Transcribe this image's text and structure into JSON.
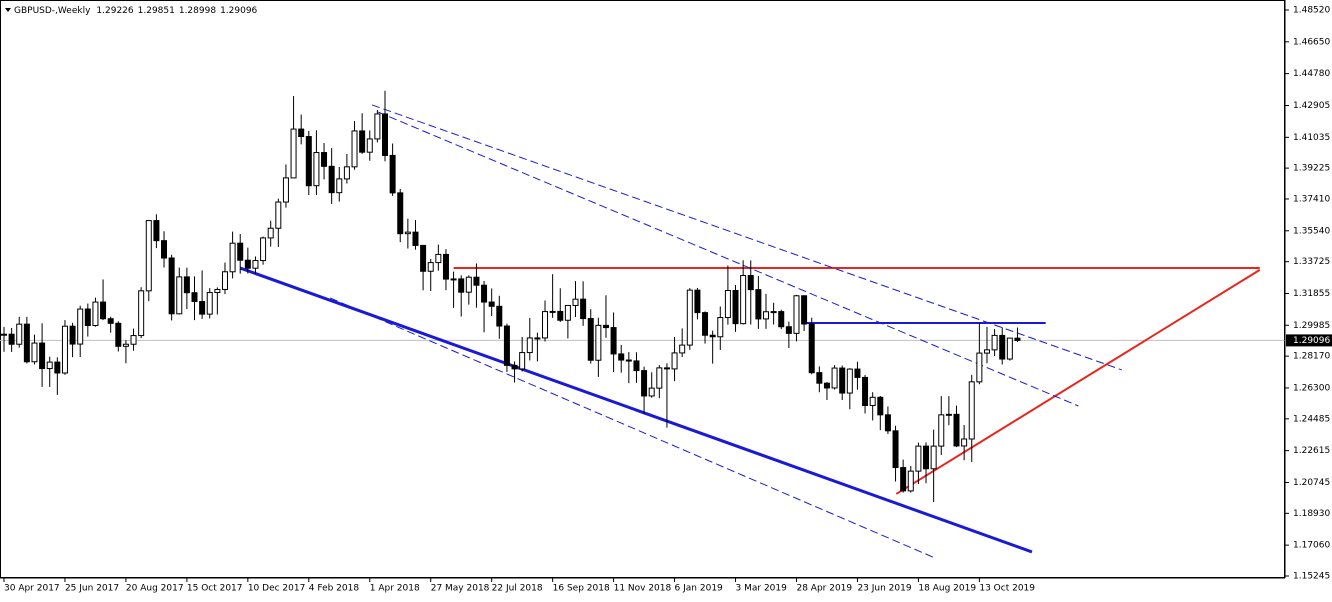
{
  "chart_data": {
    "type": "candlestick",
    "title": "GBPUSD-,Weekly",
    "ylim": [
      1.15245,
      1.4852
    ],
    "yticks": [
      {
        "value": 1.4852,
        "label": "1.48520"
      },
      {
        "value": 1.4665,
        "label": "1.46650"
      },
      {
        "value": 1.4478,
        "label": "1.44780"
      },
      {
        "value": 1.42905,
        "label": "1.42905"
      },
      {
        "value": 1.41035,
        "label": "1.41035"
      },
      {
        "value": 1.39225,
        "label": "1.39225"
      },
      {
        "value": 1.3741,
        "label": "1.37410"
      },
      {
        "value": 1.3554,
        "label": "1.35540"
      },
      {
        "value": 1.33725,
        "label": "1.33725"
      },
      {
        "value": 1.31855,
        "label": "1.31855"
      },
      {
        "value": 1.29985,
        "label": "1.29985"
      },
      {
        "value": 1.2817,
        "label": "1.28170"
      },
      {
        "value": 1.263,
        "label": "1.26300"
      },
      {
        "value": 1.24485,
        "label": "1.24485"
      },
      {
        "value": 1.22615,
        "label": "1.22615"
      },
      {
        "value": 1.20745,
        "label": "1.20745"
      },
      {
        "value": 1.1893,
        "label": "1.18930"
      },
      {
        "value": 1.1706,
        "label": "1.17060"
      },
      {
        "value": 1.15245,
        "label": "1.15245"
      }
    ],
    "categories": [
      "30 Apr 2017",
      null,
      null,
      null,
      null,
      null,
      null,
      null,
      "25 Jun 2017",
      null,
      null,
      null,
      null,
      null,
      null,
      null,
      "20 Aug 2017",
      null,
      null,
      null,
      null,
      null,
      null,
      null,
      "15 Oct 2017",
      null,
      null,
      null,
      null,
      null,
      null,
      null,
      "10 Dec 2017",
      null,
      null,
      null,
      null,
      null,
      null,
      null,
      "4 Feb 2018",
      null,
      null,
      null,
      null,
      null,
      null,
      null,
      "1 Apr 2018",
      null,
      null,
      null,
      null,
      null,
      null,
      null,
      "27 May 2018",
      null,
      null,
      null,
      null,
      null,
      null,
      null,
      "22 Jul 2018",
      null,
      null,
      null,
      null,
      null,
      null,
      null,
      "16 Sep 2018",
      null,
      null,
      null,
      null,
      null,
      null,
      null,
      "11 Nov 2018",
      null,
      null,
      null,
      null,
      null,
      null,
      null,
      "6 Jan 2019",
      null,
      null,
      null,
      null,
      null,
      null,
      null,
      "3 Mar 2019",
      null,
      null,
      null,
      null,
      null,
      null,
      null,
      "28 Apr 2019",
      null,
      null,
      null,
      null,
      null,
      null,
      null,
      "23 Jun 2019",
      null,
      null,
      null,
      null,
      null,
      null,
      null,
      "18 Aug 2019",
      null,
      null,
      null,
      null,
      null,
      null,
      null,
      "13 Oct 2019",
      null,
      null,
      null,
      null,
      null
    ],
    "ohlc": [
      [
        1.294,
        1.2989,
        1.2843,
        1.2946
      ],
      [
        1.2946,
        1.2983,
        1.2842,
        1.2887
      ],
      [
        1.2887,
        1.3048,
        1.2867,
        1.3005
      ],
      [
        1.3005,
        1.3048,
        1.2774,
        1.2784
      ],
      [
        1.2784,
        1.2943,
        1.2768,
        1.2894
      ],
      [
        1.2894,
        1.301,
        1.2636,
        1.2744
      ],
      [
        1.2744,
        1.2814,
        1.2636,
        1.2782
      ],
      [
        1.2782,
        1.281,
        1.2589,
        1.2718
      ],
      [
        1.2718,
        1.3029,
        1.2707,
        1.2993
      ],
      [
        1.2993,
        1.3013,
        1.2811,
        1.2888
      ],
      [
        1.2888,
        1.3114,
        1.2812,
        1.3094
      ],
      [
        1.3094,
        1.3126,
        1.2932,
        1.2997
      ],
      [
        1.2997,
        1.3161,
        1.299,
        1.3135
      ],
      [
        1.3135,
        1.3268,
        1.3029,
        1.3037
      ],
      [
        1.3037,
        1.3049,
        1.2955,
        1.301
      ],
      [
        1.301,
        1.3022,
        1.2844,
        1.2875
      ],
      [
        1.2875,
        1.2911,
        1.2775,
        1.2887
      ],
      [
        1.2887,
        1.2979,
        1.2849,
        1.2938
      ],
      [
        1.2938,
        1.3222,
        1.2923,
        1.3201
      ],
      [
        1.3201,
        1.3616,
        1.314,
        1.3614
      ],
      [
        1.3614,
        1.3651,
        1.3452,
        1.3496
      ],
      [
        1.3496,
        1.3551,
        1.3338,
        1.3394
      ],
      [
        1.3394,
        1.3413,
        1.3027,
        1.3066
      ],
      [
        1.3066,
        1.3338,
        1.3062,
        1.3283
      ],
      [
        1.3283,
        1.3337,
        1.3094,
        1.319
      ],
      [
        1.319,
        1.3286,
        1.3029,
        1.3138
      ],
      [
        1.3138,
        1.3321,
        1.3036,
        1.3064
      ],
      [
        1.3064,
        1.3217,
        1.3039,
        1.3191
      ],
      [
        1.3191,
        1.3221,
        1.3062,
        1.3209
      ],
      [
        1.3209,
        1.3367,
        1.3182,
        1.3313
      ],
      [
        1.3313,
        1.3549,
        1.3274,
        1.3481
      ],
      [
        1.3481,
        1.3535,
        1.3302,
        1.3381
      ],
      [
        1.3381,
        1.3455,
        1.3303,
        1.3334
      ],
      [
        1.3334,
        1.3403,
        1.3301,
        1.3379
      ],
      [
        1.3379,
        1.352,
        1.3355,
        1.3512
      ],
      [
        1.3512,
        1.3613,
        1.3461,
        1.3569
      ],
      [
        1.3569,
        1.3743,
        1.3459,
        1.3723
      ],
      [
        1.3723,
        1.3944,
        1.369,
        1.3865
      ],
      [
        1.3865,
        1.4346,
        1.3863,
        1.4152
      ],
      [
        1.4152,
        1.4237,
        1.4062,
        1.4108
      ],
      [
        1.4108,
        1.4141,
        1.3764,
        1.3819
      ],
      [
        1.3819,
        1.4145,
        1.3764,
        1.4014
      ],
      [
        1.4014,
        1.407,
        1.3856,
        1.3933
      ],
      [
        1.3933,
        1.404,
        1.3712,
        1.3778
      ],
      [
        1.3778,
        1.3929,
        1.3726,
        1.3859
      ],
      [
        1.3859,
        1.4006,
        1.3832,
        1.393
      ],
      [
        1.393,
        1.4199,
        1.3913,
        1.4141
      ],
      [
        1.4141,
        1.4245,
        1.4006,
        1.4016
      ],
      [
        1.4016,
        1.4144,
        1.3966,
        1.4094
      ],
      [
        1.4094,
        1.4264,
        1.4074,
        1.4241
      ],
      [
        1.4241,
        1.4377,
        1.3963,
        1.3997
      ],
      [
        1.3997,
        1.4067,
        1.3759,
        1.3777
      ],
      [
        1.3777,
        1.38,
        1.3487,
        1.3537
      ],
      [
        1.3537,
        1.3625,
        1.345,
        1.3546
      ],
      [
        1.3546,
        1.3617,
        1.3443,
        1.3468
      ],
      [
        1.3468,
        1.3471,
        1.3204,
        1.3316
      ],
      [
        1.3316,
        1.3389,
        1.32,
        1.3367
      ],
      [
        1.3367,
        1.3473,
        1.332,
        1.3415
      ],
      [
        1.3415,
        1.3446,
        1.3205,
        1.327
      ],
      [
        1.327,
        1.3314,
        1.3101,
        1.3271
      ],
      [
        1.3271,
        1.3292,
        1.305,
        1.3193
      ],
      [
        1.3193,
        1.3292,
        1.312,
        1.3281
      ],
      [
        1.3281,
        1.3362,
        1.3102,
        1.3234
      ],
      [
        1.3234,
        1.3259,
        1.2957,
        1.3135
      ],
      [
        1.3135,
        1.3215,
        1.3053,
        1.311
      ],
      [
        1.311,
        1.3172,
        1.2919,
        1.2994
      ],
      [
        1.2994,
        1.3008,
        1.2724,
        1.2763
      ],
      [
        1.2763,
        1.2786,
        1.2662,
        1.2742
      ],
      [
        1.2742,
        1.293,
        1.2727,
        1.2838
      ],
      [
        1.2838,
        1.3042,
        1.2792,
        1.2924
      ],
      [
        1.2924,
        1.2955,
        1.2786,
        1.2924
      ],
      [
        1.2924,
        1.3144,
        1.2903,
        1.3079
      ],
      [
        1.3079,
        1.3299,
        1.3042,
        1.308
      ],
      [
        1.308,
        1.3216,
        1.3018,
        1.3028
      ],
      [
        1.3028,
        1.3112,
        1.2921,
        1.3115
      ],
      [
        1.3115,
        1.3258,
        1.3047,
        1.3152
      ],
      [
        1.3152,
        1.3257,
        1.2995,
        1.3038
      ],
      [
        1.3038,
        1.3093,
        1.2773,
        1.2793
      ],
      [
        1.2793,
        1.3043,
        1.2695,
        1.2998
      ],
      [
        1.2998,
        1.3175,
        1.2925,
        1.2985
      ],
      [
        1.2985,
        1.3074,
        1.2723,
        1.283
      ],
      [
        1.283,
        1.2883,
        1.272,
        1.2794
      ],
      [
        1.2794,
        1.2841,
        1.2658,
        1.2789
      ],
      [
        1.2789,
        1.284,
        1.266,
        1.2732
      ],
      [
        1.2732,
        1.2755,
        1.2477,
        1.2583
      ],
      [
        1.2583,
        1.2722,
        1.2573,
        1.2629
      ],
      [
        1.2629,
        1.2764,
        1.257,
        1.2748
      ],
      [
        1.2748,
        1.2775,
        1.2397,
        1.2742
      ],
      [
        1.2742,
        1.293,
        1.267,
        1.2836
      ],
      [
        1.2836,
        1.298,
        1.2812,
        1.2882
      ],
      [
        1.2882,
        1.3217,
        1.2854,
        1.3205
      ],
      [
        1.3205,
        1.3218,
        1.3033,
        1.3073
      ],
      [
        1.3073,
        1.308,
        1.2891,
        1.294
      ],
      [
        1.294,
        1.2967,
        1.2773,
        1.2931
      ],
      [
        1.2931,
        1.3109,
        1.2853,
        1.3044
      ],
      [
        1.3044,
        1.335,
        1.3002,
        1.3203
      ],
      [
        1.3203,
        1.3235,
        1.296,
        1.3008
      ],
      [
        1.3008,
        1.3381,
        1.3003,
        1.3291
      ],
      [
        1.3291,
        1.338,
        1.3003,
        1.3208
      ],
      [
        1.3208,
        1.3288,
        1.2977,
        1.3036
      ],
      [
        1.3036,
        1.3183,
        1.2977,
        1.3078
      ],
      [
        1.3078,
        1.3131,
        1.3003,
        1.3079
      ],
      [
        1.3079,
        1.309,
        1.2976,
        1.299
      ],
      [
        1.299,
        1.302,
        1.2865,
        1.2951
      ],
      [
        1.2951,
        1.3177,
        1.2904,
        1.3172
      ],
      [
        1.3172,
        1.3175,
        1.2965,
        1.3006
      ],
      [
        1.3006,
        1.3043,
        1.271,
        1.272
      ],
      [
        1.272,
        1.2757,
        1.2605,
        1.2658
      ],
      [
        1.2658,
        1.2665,
        1.2559,
        1.263
      ],
      [
        1.263,
        1.2764,
        1.2621,
        1.2747
      ],
      [
        1.2747,
        1.2762,
        1.2559,
        1.26
      ],
      [
        1.26,
        1.2746,
        1.2505,
        1.2741
      ],
      [
        1.2741,
        1.2784,
        1.262,
        1.2692
      ],
      [
        1.2692,
        1.2706,
        1.248,
        1.2527
      ],
      [
        1.2527,
        1.2605,
        1.2439,
        1.2575
      ],
      [
        1.2575,
        1.2583,
        1.2382,
        1.2472
      ],
      [
        1.2472,
        1.2521,
        1.236,
        1.2378
      ],
      [
        1.2378,
        1.2408,
        1.208,
        1.2162
      ],
      [
        1.2162,
        1.2209,
        1.2015,
        1.2025
      ],
      [
        1.2025,
        1.2171,
        1.2015,
        1.2141
      ],
      [
        1.2141,
        1.2309,
        1.2065,
        1.2288
      ],
      [
        1.2288,
        1.231,
        1.207,
        1.2155
      ],
      [
        1.2155,
        1.2385,
        1.1959,
        1.2288
      ],
      [
        1.2288,
        1.2582,
        1.2236,
        1.2472
      ],
      [
        1.2472,
        1.2582,
        1.2411,
        1.2475
      ],
      [
        1.2475,
        1.2526,
        1.2282,
        1.2289
      ],
      [
        1.2289,
        1.2412,
        1.2205,
        1.233
      ],
      [
        1.233,
        1.2707,
        1.2195,
        1.2666
      ],
      [
        1.2666,
        1.3013,
        1.2652,
        1.2835
      ],
      [
        1.2835,
        1.2989,
        1.2775,
        1.2854
      ],
      [
        1.2854,
        1.2976,
        1.2817,
        1.2939
      ],
      [
        1.2939,
        1.2986,
        1.2768,
        1.28
      ],
      [
        1.28,
        1.2924,
        1.2791,
        1.2923
      ],
      [
        1.29226,
        1.29851,
        1.28998,
        1.29096
      ]
    ],
    "trendlines": [
      {
        "color": "#e8261e",
        "width": 2,
        "dashed": false,
        "x": [
          59,
          164.8
        ],
        "y": [
          1.3335,
          1.3335
        ]
      },
      {
        "color": "#e8261e",
        "width": 2,
        "dashed": false,
        "x": [
          117.1,
          164.8
        ],
        "y": [
          1.2007,
          1.3324
        ]
      },
      {
        "color": "#1a1ad6",
        "width": 2,
        "dashed": false,
        "x": [
          105.1,
          136.7
        ],
        "y": [
          1.3012,
          1.3012
        ]
      },
      {
        "color": "#1a1ad6",
        "width": 3,
        "dashed": false,
        "x": [
          31,
          134.9
        ],
        "y": [
          1.3335,
          1.1666
        ]
      },
      {
        "color": "#1a1ad6",
        "width": 1,
        "dashed": true,
        "x": [
          48.3,
          146.7
        ],
        "y": [
          1.4294,
          1.2736
        ]
      },
      {
        "color": "#1a1ad6",
        "width": 1,
        "dashed": true,
        "x": [
          49.1,
          141
        ],
        "y": [
          1.4252,
          1.2524
        ]
      },
      {
        "color": "#1a1ad6",
        "width": 1,
        "dashed": true,
        "x": [
          42.8,
          122.2
        ],
        "y": [
          1.3159,
          1.163
        ]
      }
    ]
  }
}
